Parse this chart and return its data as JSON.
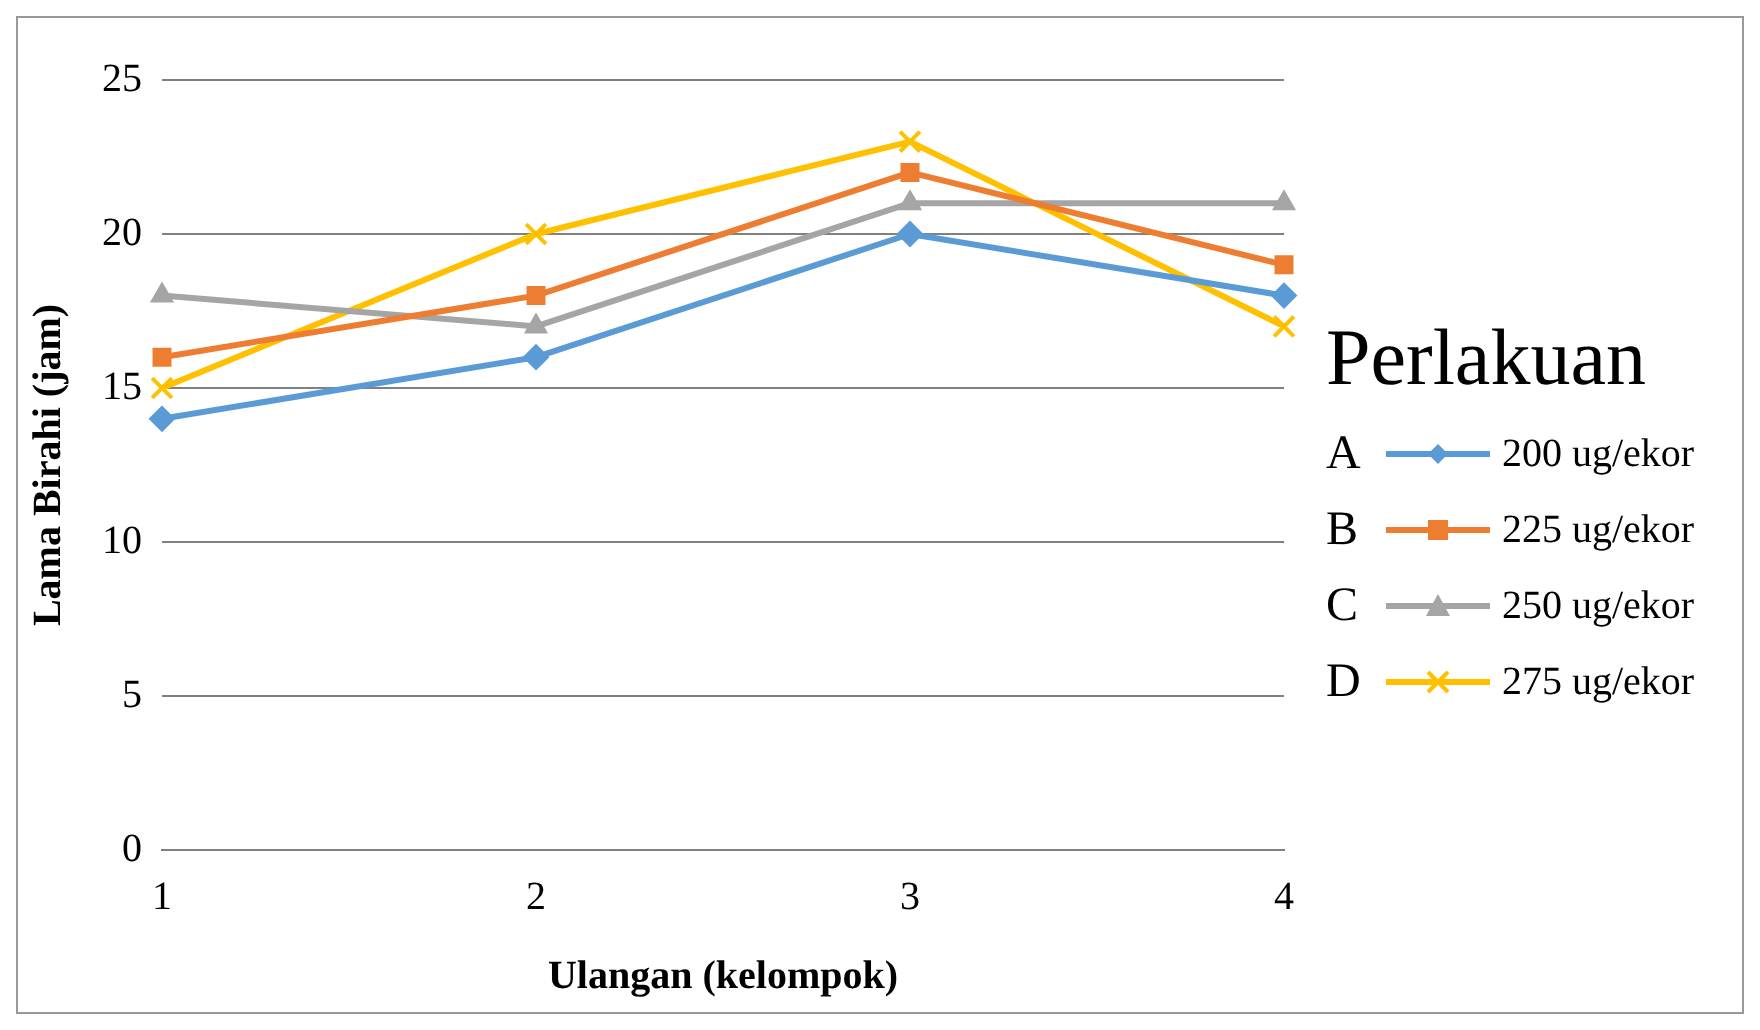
{
  "chart_data": {
    "type": "line",
    "xlabel": "Ulangan (kelompok)",
    "ylabel": "Lama Birahi (jam)",
    "legend_title": "Perlakuan",
    "categories": [
      "1",
      "2",
      "3",
      "4"
    ],
    "series": [
      {
        "name": "200 ug/ekor",
        "color": "#5b9bd5",
        "marker": "diamond",
        "values": [
          14,
          16,
          20,
          18
        ]
      },
      {
        "name": "225 ug/ekor",
        "color": "#ed7d31",
        "marker": "square",
        "values": [
          16,
          18,
          22,
          19
        ]
      },
      {
        "name": "250 ug/ekor",
        "color": "#a5a5a5",
        "marker": "triangle",
        "values": [
          18,
          17,
          21,
          21
        ]
      },
      {
        "name": "275 ug/ekor",
        "color": "#ffc000",
        "marker": "cross",
        "values": [
          15,
          20,
          23,
          17
        ]
      }
    ],
    "annotations": [
      "A",
      "B",
      "C",
      "D"
    ],
    "ylim": [
      0,
      25
    ],
    "yticks": [
      0,
      5,
      10,
      15,
      20,
      25
    ],
    "grid": "y",
    "legend": "right"
  }
}
